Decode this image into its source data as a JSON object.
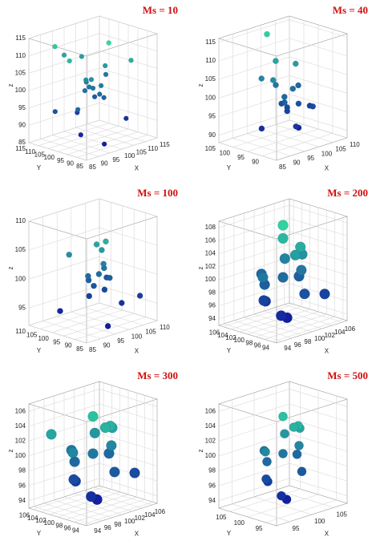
{
  "chart_data": [
    {
      "type": "scatter3d",
      "title": "Ms = 10",
      "x_label": "X",
      "y_label": "Y",
      "z_label": "z",
      "x": [
        100,
        98,
        102,
        101,
        99,
        97,
        103,
        100,
        96,
        104,
        92,
        108,
        88,
        110,
        95,
        105,
        90,
        112,
        101,
        99,
        94,
        106,
        100,
        87
      ],
      "y": [
        100,
        101,
        99,
        97,
        103,
        100,
        98,
        102,
        96,
        104,
        110,
        90,
        105,
        95,
        88,
        112,
        100,
        108,
        93,
        107,
        99,
        101,
        115,
        92
      ],
      "z": [
        100,
        102,
        98,
        101,
        99,
        103,
        97,
        100,
        104,
        96,
        112,
        108,
        95,
        90,
        87,
        106,
        110,
        100,
        114,
        92,
        88,
        105,
        107,
        98
      ],
      "xlim": [
        85,
        115
      ],
      "ylim": [
        85,
        115
      ],
      "zlim": [
        85,
        115
      ],
      "xticks": [
        85,
        90,
        95,
        100,
        105,
        110,
        115
      ],
      "yticks": [
        85,
        90,
        95,
        100,
        105,
        110,
        115
      ],
      "zticks": [
        85,
        90,
        95,
        100,
        105,
        110,
        115
      ],
      "colormap": [
        "#1010a0",
        "#30e0a0"
      ],
      "grid": true
    },
    {
      "type": "scatter3d",
      "title": "Ms = 40",
      "x_label": "X",
      "y_label": "Y",
      "z_label": "z",
      "x": [
        98,
        100,
        97,
        99,
        101,
        96,
        100,
        98,
        102,
        95,
        105,
        92,
        107,
        100,
        97,
        103,
        99,
        101,
        94,
        106
      ],
      "y": [
        95,
        96,
        94,
        97,
        95,
        93,
        96,
        98,
        94,
        100,
        92,
        97,
        95,
        103,
        90,
        96,
        99,
        93,
        95,
        98
      ],
      "z": [
        98,
        96,
        100,
        97,
        101,
        99,
        95,
        102,
        97,
        104,
        96,
        92,
        95,
        114,
        93,
        107,
        108,
        91,
        105,
        100
      ],
      "xlim": [
        85,
        110
      ],
      "ylim": [
        85,
        105
      ],
      "zlim": [
        88,
        116
      ],
      "xticks": [
        85,
        90,
        95,
        100,
        105,
        110
      ],
      "yticks": [
        90,
        95,
        100,
        105
      ],
      "zticks": [
        90,
        95,
        100,
        105,
        110,
        115
      ],
      "colormap": [
        "#1010a0",
        "#30e0a0"
      ],
      "grid": true
    },
    {
      "type": "scatter3d",
      "title": "Ms = 100",
      "x_label": "X",
      "y_label": "Y",
      "z_label": "z",
      "x": [
        100,
        99,
        101,
        98,
        102,
        100,
        97,
        103,
        99,
        101,
        100,
        92,
        108,
        95,
        106,
        100,
        104,
        96
      ],
      "y": [
        98,
        99,
        97,
        100,
        98,
        96,
        99,
        97,
        101,
        98,
        99,
        105,
        90,
        88,
        102,
        95,
        93,
        106
      ],
      "z": [
        100,
        98,
        101,
        99,
        97,
        102,
        100,
        99,
        96,
        104,
        105,
        94,
        96,
        93,
        98,
        106,
        95,
        103
      ],
      "xlim": [
        85,
        110
      ],
      "ylim": [
        85,
        110
      ],
      "zlim": [
        92,
        110
      ],
      "xticks": [
        85,
        90,
        95,
        100,
        105,
        110
      ],
      "yticks": [
        85,
        90,
        95,
        100,
        105,
        110
      ],
      "zticks": [
        95,
        100,
        105,
        110
      ],
      "colormap": [
        "#1010a0",
        "#30e0a0"
      ],
      "grid": true
    },
    {
      "type": "scatter3d",
      "title": "Ms = 200",
      "x_label": "X",
      "y_label": "Y",
      "z_label": "z",
      "x": [
        100,
        98,
        102,
        100,
        97,
        103,
        99,
        101,
        100,
        96,
        104,
        98,
        102,
        100,
        99,
        101,
        100,
        105
      ],
      "y": [
        100,
        102,
        98,
        97,
        101,
        99,
        103,
        96,
        100,
        100,
        101,
        98,
        102,
        99,
        104,
        97,
        100,
        96
      ],
      "z": [
        100,
        99,
        101,
        104,
        97,
        103,
        96,
        98,
        106,
        101,
        99,
        95,
        102,
        94,
        100,
        105,
        108,
        97
      ],
      "xlim": [
        93,
        107
      ],
      "ylim": [
        93,
        107
      ],
      "zlim": [
        93,
        109
      ],
      "xticks": [
        94,
        96,
        98,
        100,
        102,
        104,
        106
      ],
      "yticks": [
        94,
        96,
        98,
        100,
        102,
        104,
        106
      ],
      "zticks": [
        94,
        96,
        98,
        100,
        102,
        104,
        106,
        108
      ],
      "colormap": [
        "#1010a0",
        "#30e0a0"
      ],
      "grid": true
    },
    {
      "type": "scatter3d",
      "title": "Ms = 300",
      "x_label": "X",
      "y_label": "Y",
      "z_label": "z",
      "x": [
        100,
        98,
        102,
        100,
        97,
        103,
        99,
        101,
        100,
        96,
        104,
        98,
        102,
        100,
        99,
        101,
        95,
        105
      ],
      "y": [
        100,
        102,
        98,
        97,
        101,
        99,
        103,
        96,
        100,
        100,
        101,
        98,
        102,
        99,
        104,
        97,
        104,
        96
      ],
      "z": [
        100,
        99,
        101,
        104,
        97,
        103,
        96,
        98,
        105,
        101,
        99,
        95,
        102,
        94,
        100,
        104,
        103,
        97
      ],
      "xlim": [
        93,
        107
      ],
      "ylim": [
        93,
        107
      ],
      "zlim": [
        93,
        107
      ],
      "xticks": [
        94,
        96,
        98,
        100,
        102,
        104,
        106
      ],
      "yticks": [
        94,
        96,
        98,
        100,
        102,
        104,
        106
      ],
      "zticks": [
        94,
        96,
        98,
        100,
        102,
        104,
        106
      ],
      "colormap": [
        "#1010a0",
        "#30e0a0"
      ],
      "grid": true
    },
    {
      "type": "scatter3d",
      "title": "Ms = 500",
      "x_label": "X",
      "y_label": "Y",
      "z_label": "z",
      "x": [
        100,
        98,
        102,
        100,
        97,
        103,
        99,
        101,
        100,
        96,
        104,
        98,
        102,
        100,
        99,
        101
      ],
      "y": [
        100,
        102,
        98,
        97,
        101,
        99,
        103,
        96,
        100,
        100,
        101,
        98,
        102,
        99,
        104,
        97
      ],
      "z": [
        100,
        99,
        101,
        104,
        97,
        103,
        96,
        98,
        105,
        101,
        99,
        95,
        102,
        94,
        100,
        104
      ],
      "xlim": [
        92,
        108
      ],
      "ylim": [
        92,
        108
      ],
      "zlim": [
        93,
        107
      ],
      "xticks": [
        95,
        100,
        105
      ],
      "yticks": [
        95,
        100,
        105
      ],
      "zticks": [
        94,
        96,
        98,
        100,
        102,
        104,
        106
      ],
      "colormap": [
        "#1010a0",
        "#30e0a0"
      ],
      "grid": true
    }
  ]
}
